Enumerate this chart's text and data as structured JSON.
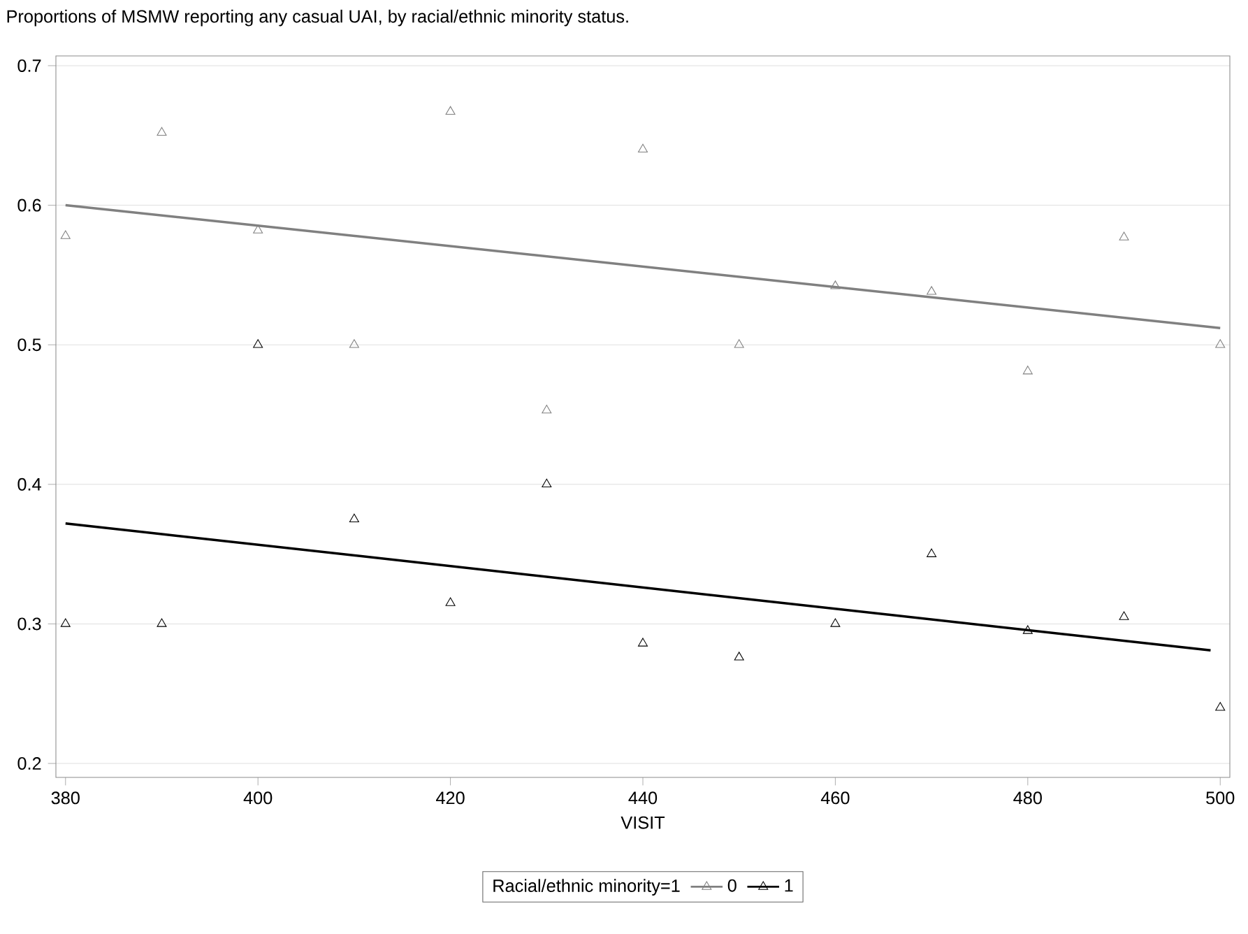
{
  "chart_data": {
    "type": "scatter",
    "title": "Proportions of MSMW reporting any casual UAI, by racial/ethnic minority status.",
    "xlabel": "VISIT",
    "legend_title": "Racial/ethnic minority=1",
    "xlim": [
      379,
      501
    ],
    "ylim": [
      0.19,
      0.707
    ],
    "xticks": [
      380,
      400,
      420,
      440,
      460,
      480,
      500
    ],
    "yticks": [
      0.2,
      0.3,
      0.4,
      0.5,
      0.6,
      0.7
    ],
    "grid": "y",
    "legend": "bottom",
    "marker": "triangle",
    "x": [
      380,
      390,
      400,
      410,
      420,
      430,
      440,
      450,
      460,
      470,
      480,
      490,
      500
    ],
    "series": [
      {
        "name": "0",
        "color": "#808080",
        "values": [
          0.578,
          0.652,
          0.582,
          0.5,
          0.667,
          0.453,
          0.64,
          0.5,
          0.542,
          0.538,
          0.481,
          0.577,
          0.5
        ]
      },
      {
        "name": "1",
        "color": "#000000",
        "values": [
          0.3,
          0.3,
          0.5,
          0.375,
          0.315,
          0.4,
          0.286,
          0.276,
          0.3,
          0.35,
          0.295,
          0.305,
          0.24
        ]
      },
      {
        "type": "line",
        "color": "#808080",
        "x": [
          380,
          500
        ],
        "values": [
          0.6,
          0.512
        ],
        "line_style": "solid",
        "marker": "none"
      },
      {
        "type": "line",
        "color": "#000000",
        "x": [
          380,
          499
        ],
        "values": [
          0.372,
          0.281
        ],
        "line_style": "solid",
        "marker": "none"
      }
    ]
  }
}
